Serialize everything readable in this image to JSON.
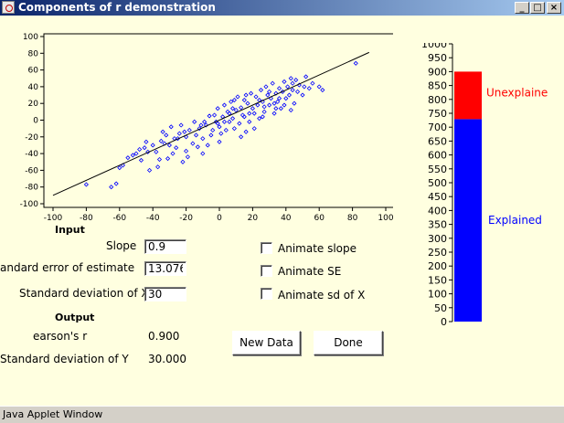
{
  "window": {
    "title": "Components of r demonstration",
    "minimize_glyph": "_",
    "maximize_glyph": "□",
    "close_glyph": "×"
  },
  "scatter_panel": {
    "title": "",
    "xlabel": "",
    "ylabel": "",
    "background": "#ffffe0",
    "point_color": "#0000ff"
  },
  "bar_panel": {
    "unexplained_label": "Unexplained",
    "explained_label": "Explained",
    "unexplained_color": "#ff0000",
    "explained_color": "#0000ff"
  },
  "input": {
    "heading": "Input",
    "slope_label": "Slope",
    "slope_value": "0.9",
    "se_label": "andard error of estimate",
    "se_value": "13.076",
    "sdx_label": "Standard deviation of X",
    "sdx_value": "30"
  },
  "animate": {
    "slope_label": "Animate slope",
    "se_label": "Animate SE",
    "sdx_label": "Animate sd of X"
  },
  "output": {
    "heading": "Output",
    "r_label": "earson's r",
    "r_value": "0.900",
    "sdy_label": "Standard deviation of Y",
    "sdy_value": "30.000"
  },
  "buttons": {
    "new_data": "New Data",
    "done": "Done"
  },
  "status": {
    "text": "Java Applet Window"
  },
  "chart_data": [
    {
      "type": "scatter",
      "title": "",
      "xlabel": "",
      "ylabel": "",
      "xlim": [
        -100,
        100
      ],
      "ylim": [
        -100,
        100
      ],
      "xticks": [
        -100,
        -80,
        -60,
        -40,
        -20,
        0,
        20,
        40,
        60,
        80,
        100
      ],
      "yticks": [
        -100,
        -80,
        -60,
        -40,
        -20,
        0,
        20,
        40,
        60,
        80,
        100
      ],
      "grid": false,
      "regression_line": {
        "slope": 0.9,
        "intercept": 0
      },
      "points": [
        [
          -80,
          -77
        ],
        [
          -65,
          -80
        ],
        [
          -62,
          -76
        ],
        [
          -60,
          -57
        ],
        [
          -55,
          -45
        ],
        [
          -50,
          -40
        ],
        [
          -48,
          -35
        ],
        [
          -45,
          -33
        ],
        [
          -47,
          -48
        ],
        [
          -42,
          -60
        ],
        [
          -40,
          -30
        ],
        [
          -38,
          -38
        ],
        [
          -36,
          -47
        ],
        [
          -35,
          -25
        ],
        [
          -34,
          -14
        ],
        [
          -32,
          -18
        ],
        [
          -30,
          -30
        ],
        [
          -29,
          -8
        ],
        [
          -28,
          -40
        ],
        [
          -26,
          -33
        ],
        [
          -25,
          -22
        ],
        [
          -24,
          -16
        ],
        [
          -22,
          -50
        ],
        [
          -20,
          -37
        ],
        [
          -20,
          -20
        ],
        [
          -18,
          -12
        ],
        [
          -16,
          -28
        ],
        [
          -15,
          -2
        ],
        [
          -14,
          -18
        ],
        [
          -12,
          -10
        ],
        [
          -10,
          -40
        ],
        [
          -10,
          -22
        ],
        [
          -8,
          -6
        ],
        [
          -6,
          5
        ],
        [
          -5,
          -18
        ],
        [
          -4,
          -12
        ],
        [
          -2,
          -2
        ],
        [
          -1,
          14
        ],
        [
          0,
          -8
        ],
        [
          0,
          -26
        ],
        [
          2,
          4
        ],
        [
          3,
          18
        ],
        [
          4,
          -12
        ],
        [
          5,
          10
        ],
        [
          6,
          -2
        ],
        [
          7,
          22
        ],
        [
          8,
          2
        ],
        [
          9,
          -10
        ],
        [
          10,
          12
        ],
        [
          11,
          28
        ],
        [
          12,
          -4
        ],
        [
          13,
          15
        ],
        [
          14,
          6
        ],
        [
          15,
          24
        ],
        [
          16,
          -14
        ],
        [
          17,
          20
        ],
        [
          18,
          8
        ],
        [
          19,
          32
        ],
        [
          20,
          14
        ],
        [
          21,
          -10
        ],
        [
          22,
          28
        ],
        [
          23,
          18
        ],
        [
          24,
          2
        ],
        [
          25,
          36
        ],
        [
          26,
          22
        ],
        [
          27,
          10
        ],
        [
          28,
          40
        ],
        [
          29,
          30
        ],
        [
          30,
          18
        ],
        [
          31,
          26
        ],
        [
          32,
          44
        ],
        [
          33,
          8
        ],
        [
          34,
          32
        ],
        [
          35,
          22
        ],
        [
          36,
          38
        ],
        [
          37,
          14
        ],
        [
          38,
          34
        ],
        [
          39,
          46
        ],
        [
          40,
          26
        ],
        [
          41,
          40
        ],
        [
          42,
          30
        ],
        [
          43,
          12
        ],
        [
          44,
          36
        ],
        [
          45,
          20
        ],
        [
          46,
          48
        ],
        [
          48,
          42
        ],
        [
          50,
          30
        ],
        [
          52,
          52
        ],
        [
          54,
          38
        ],
        [
          56,
          44
        ],
        [
          60,
          40
        ],
        [
          62,
          36
        ],
        [
          -52,
          -42
        ],
        [
          -44,
          -26
        ],
        [
          -37,
          -56
        ],
        [
          -31,
          -46
        ],
        [
          -27,
          -22
        ],
        [
          -23,
          -6
        ],
        [
          -19,
          -44
        ],
        [
          -13,
          -32
        ],
        [
          -9,
          -2
        ],
        [
          -7,
          -30
        ],
        [
          -3,
          6
        ],
        [
          1,
          -16
        ],
        [
          3,
          -2
        ],
        [
          6,
          8
        ],
        [
          9,
          24
        ],
        [
          13,
          -20
        ],
        [
          15,
          4
        ],
        [
          18,
          -2
        ],
        [
          21,
          8
        ],
        [
          24,
          24
        ],
        [
          27,
          16
        ],
        [
          30,
          34
        ],
        [
          33,
          20
        ],
        [
          36,
          26
        ],
        [
          39,
          18
        ],
        [
          43,
          50
        ],
        [
          47,
          34
        ],
        [
          51,
          40
        ],
        [
          -58,
          -54
        ],
        [
          -43,
          -38
        ],
        [
          -33,
          -28
        ],
        [
          -21,
          -14
        ],
        [
          -11,
          -6
        ],
        [
          -1,
          -4
        ],
        [
          8,
          14
        ],
        [
          16,
          30
        ],
        [
          26,
          4
        ],
        [
          34,
          14
        ],
        [
          44,
          44
        ],
        [
          82,
          68
        ]
      ]
    },
    {
      "type": "bar",
      "title": "",
      "xlabel": "",
      "ylabel": "",
      "ylim": [
        0,
        1000
      ],
      "yticks": [
        0,
        50,
        100,
        150,
        200,
        250,
        300,
        350,
        400,
        450,
        500,
        550,
        600,
        650,
        700,
        750,
        800,
        850,
        900,
        950,
        1000
      ],
      "series": [
        {
          "name": "Explained",
          "values": [
            729
          ]
        },
        {
          "name": "Unexplained",
          "values": [
            171
          ]
        }
      ],
      "stacked": true
    }
  ]
}
